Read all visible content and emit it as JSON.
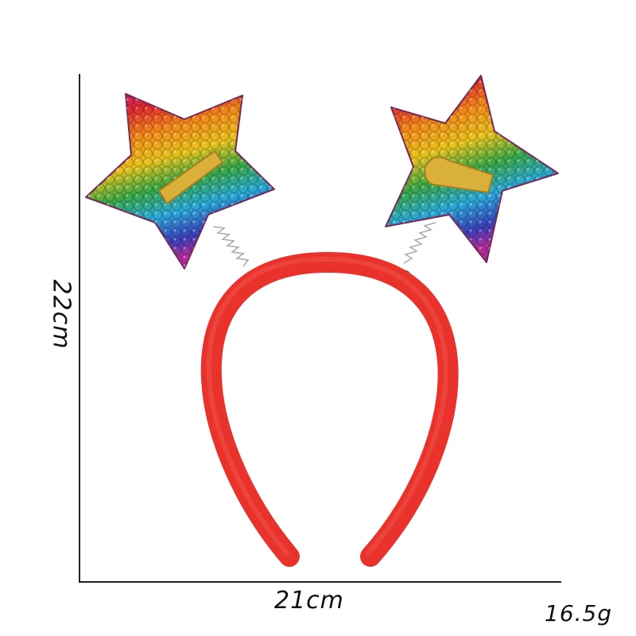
{
  "dimensions": {
    "height_label": "22cm",
    "width_label": "21cm",
    "weight_label": "16.5g"
  },
  "colors": {
    "headband": "#e8322b",
    "dimension_line": "#222222",
    "sequin_palette": [
      "#e0262f",
      "#f28a1a",
      "#e8c21c",
      "#3aa845",
      "#2aa9d8",
      "#3a3fb8",
      "#b52d9c"
    ]
  },
  "product": {
    "type": "star headband",
    "ornaments": [
      "star-left",
      "star-right"
    ]
  }
}
